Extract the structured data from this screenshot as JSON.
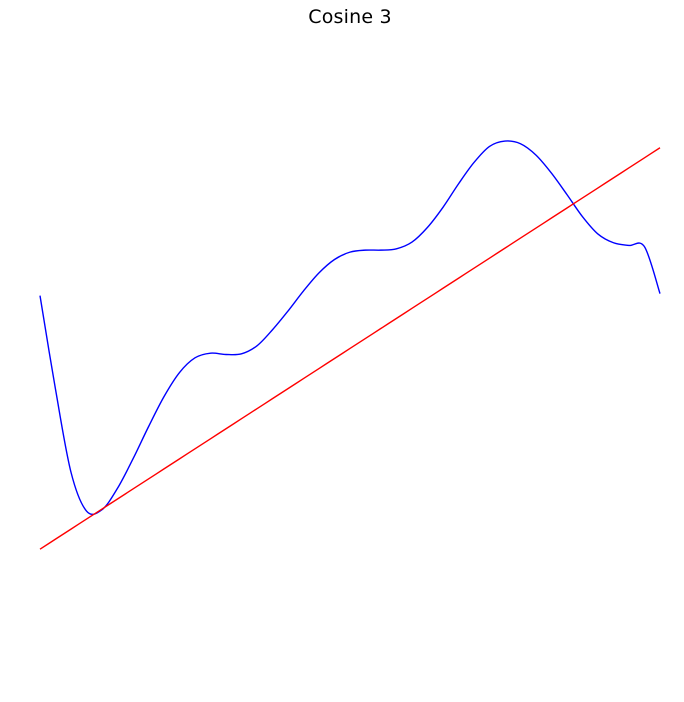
{
  "chart_data": {
    "type": "line",
    "title": "Cosine 3",
    "axes_visible": false,
    "grid": false,
    "x": [
      0.0,
      0.025,
      0.05,
      0.075,
      0.1,
      0.125,
      0.15,
      0.175,
      0.2,
      0.225,
      0.25,
      0.275,
      0.3,
      0.325,
      0.35,
      0.375,
      0.4,
      0.425,
      0.45,
      0.475,
      0.5,
      0.525,
      0.55,
      0.575,
      0.6,
      0.625,
      0.65,
      0.675,
      0.7,
      0.725,
      0.75,
      0.775,
      0.8,
      0.825,
      0.85,
      0.875,
      0.9,
      0.925,
      0.95,
      0.975,
      1.0
    ],
    "series": [
      {
        "color": "#0000ff",
        "values": [
          0.591,
          0.451,
          0.327,
          0.269,
          0.271,
          0.303,
          0.347,
          0.395,
          0.44,
          0.476,
          0.498,
          0.505,
          0.503,
          0.504,
          0.516,
          0.54,
          0.568,
          0.598,
          0.625,
          0.645,
          0.656,
          0.659,
          0.659,
          0.661,
          0.671,
          0.693,
          0.723,
          0.758,
          0.79,
          0.814,
          0.822,
          0.818,
          0.801,
          0.774,
          0.742,
          0.709,
          0.683,
          0.67,
          0.666,
          0.664,
          0.594
        ]
      },
      {
        "color": "#ff0000",
        "values": [
          0.212,
          0.227,
          0.242,
          0.257,
          0.272,
          0.287,
          0.302,
          0.317,
          0.332,
          0.347,
          0.362,
          0.377,
          0.392,
          0.407,
          0.422,
          0.437,
          0.452,
          0.467,
          0.482,
          0.497,
          0.512,
          0.527,
          0.542,
          0.557,
          0.572,
          0.587,
          0.602,
          0.617,
          0.632,
          0.647,
          0.662,
          0.677,
          0.692,
          0.707,
          0.722,
          0.737,
          0.752,
          0.767,
          0.782,
          0.797,
          0.812
        ]
      }
    ],
    "xlim": [
      0,
      1
    ],
    "ylim": [
      0,
      1
    ]
  }
}
